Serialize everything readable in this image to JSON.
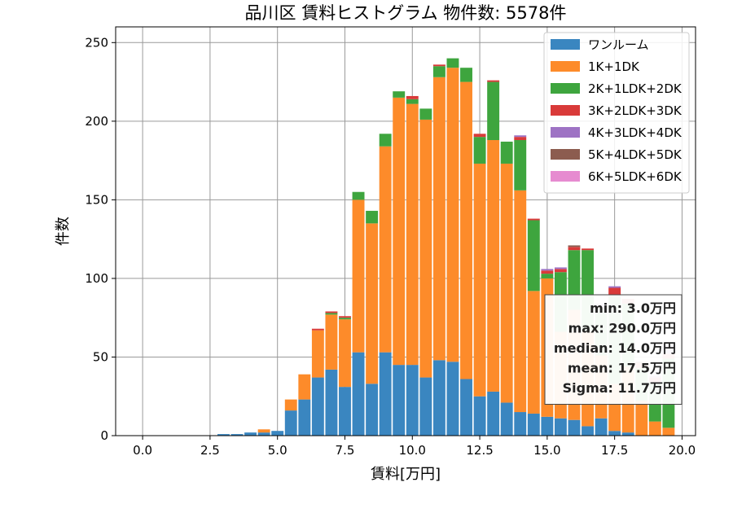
{
  "chart_data": {
    "type": "bar",
    "stacked": true,
    "title": "品川区 賃料ヒストグラム 物件数: 5578件",
    "xlabel": "賃料[万円]",
    "ylabel": "件数",
    "xlim": [
      -1,
      20.5
    ],
    "ylim": [
      0,
      260
    ],
    "xticks": [
      0.0,
      2.5,
      5.0,
      7.5,
      10.0,
      12.5,
      15.0,
      17.5,
      20.0
    ],
    "xtick_labels": [
      "0.0",
      "2.5",
      "5.0",
      "7.5",
      "10.0",
      "12.5",
      "15.0",
      "17.5",
      "20.0"
    ],
    "yticks": [
      0,
      50,
      100,
      150,
      200,
      250
    ],
    "ytick_labels": [
      "0",
      "50",
      "100",
      "150",
      "200",
      "250"
    ],
    "grid": true,
    "legend_position": "top-right",
    "bin_width": 0.5,
    "x": [
      0,
      0.5,
      1,
      1.5,
      2,
      2.5,
      3,
      3.5,
      4,
      4.5,
      5,
      5.5,
      6,
      6.5,
      7,
      7.5,
      8,
      8.5,
      9,
      9.5,
      10,
      10.5,
      11,
      11.5,
      12,
      12.5,
      13,
      13.5,
      14,
      14.5,
      15,
      15.5,
      16,
      16.5,
      17,
      17.5,
      18,
      18.5,
      19,
      19.5
    ],
    "series": [
      {
        "name": "ワンルーム",
        "color": "#3a86c0",
        "values": [
          0,
          0,
          0,
          0,
          0,
          0,
          1,
          1,
          2,
          2,
          3,
          16,
          23,
          37,
          42,
          31,
          53,
          33,
          53,
          45,
          45,
          37,
          48,
          47,
          36,
          25,
          28,
          21,
          15,
          14,
          12,
          11,
          10,
          6,
          11,
          3,
          2,
          0,
          0,
          0
        ]
      },
      {
        "name": "1K+1DK",
        "color": "#fd8b2a",
        "values": [
          0,
          0,
          0,
          0,
          0,
          0,
          0,
          0,
          0,
          2,
          0,
          7,
          16,
          30,
          35,
          43,
          97,
          102,
          131,
          170,
          166,
          164,
          180,
          187,
          189,
          148,
          160,
          152,
          141,
          78,
          88,
          55,
          70,
          60,
          40,
          30,
          42,
          22,
          9,
          5
        ]
      },
      {
        "name": "2K+1LDK+2DK",
        "color": "#3ea53e",
        "values": [
          0,
          0,
          0,
          0,
          0,
          0,
          0,
          0,
          0,
          0,
          0,
          0,
          0,
          0,
          1,
          1,
          5,
          8,
          8,
          4,
          3,
          7,
          7,
          6,
          9,
          17,
          37,
          14,
          32,
          45,
          3,
          38,
          38,
          52,
          30,
          56,
          40,
          21,
          25,
          44
        ]
      },
      {
        "name": "3K+2LDK+3DK",
        "color": "#d93a39",
        "values": [
          0,
          0,
          0,
          0,
          0,
          0,
          0,
          0,
          0,
          0,
          0,
          0,
          0,
          1,
          1,
          1,
          0,
          0,
          0,
          0,
          2,
          0,
          1,
          0,
          0,
          2,
          1,
          0,
          2,
          1,
          2,
          2,
          2,
          1,
          1,
          5,
          3,
          3,
          3,
          3
        ]
      },
      {
        "name": "4K+3LDK+4DK",
        "color": "#9e73c4",
        "values": [
          0,
          0,
          0,
          0,
          0,
          0,
          0,
          0,
          0,
          0,
          0,
          0,
          0,
          0,
          0,
          0,
          0,
          0,
          0,
          0,
          0,
          0,
          0,
          0,
          0,
          0,
          0,
          0,
          1,
          0,
          1,
          1,
          0,
          0,
          2,
          1,
          0,
          0,
          1,
          6
        ]
      },
      {
        "name": "5K+4LDK+5DK",
        "color": "#8c5c4f",
        "values": [
          0,
          0,
          0,
          0,
          0,
          0,
          0,
          0,
          0,
          0,
          0,
          0,
          0,
          0,
          0,
          0,
          0,
          0,
          0,
          0,
          0,
          0,
          0,
          0,
          0,
          0,
          0,
          0,
          0,
          0,
          0,
          0,
          1,
          0,
          0,
          0,
          0,
          1,
          0,
          1
        ]
      },
      {
        "name": "6K+5LDK+6DK",
        "color": "#e68bd0",
        "values": [
          0,
          0,
          0,
          0,
          0,
          0,
          0,
          0,
          0,
          0,
          0,
          0,
          0,
          0,
          0,
          0,
          0,
          0,
          0,
          0,
          0,
          0,
          0,
          0,
          0,
          0,
          0,
          0,
          0,
          0,
          0,
          0,
          0,
          0,
          0,
          0,
          0,
          0,
          0,
          0
        ]
      }
    ],
    "annotations": {
      "stats": [
        "min: 3.0万円",
        "max: 290.0万円",
        "median: 14.0万円",
        "mean: 17.5万円",
        "Sigma: 11.7万円"
      ]
    }
  }
}
